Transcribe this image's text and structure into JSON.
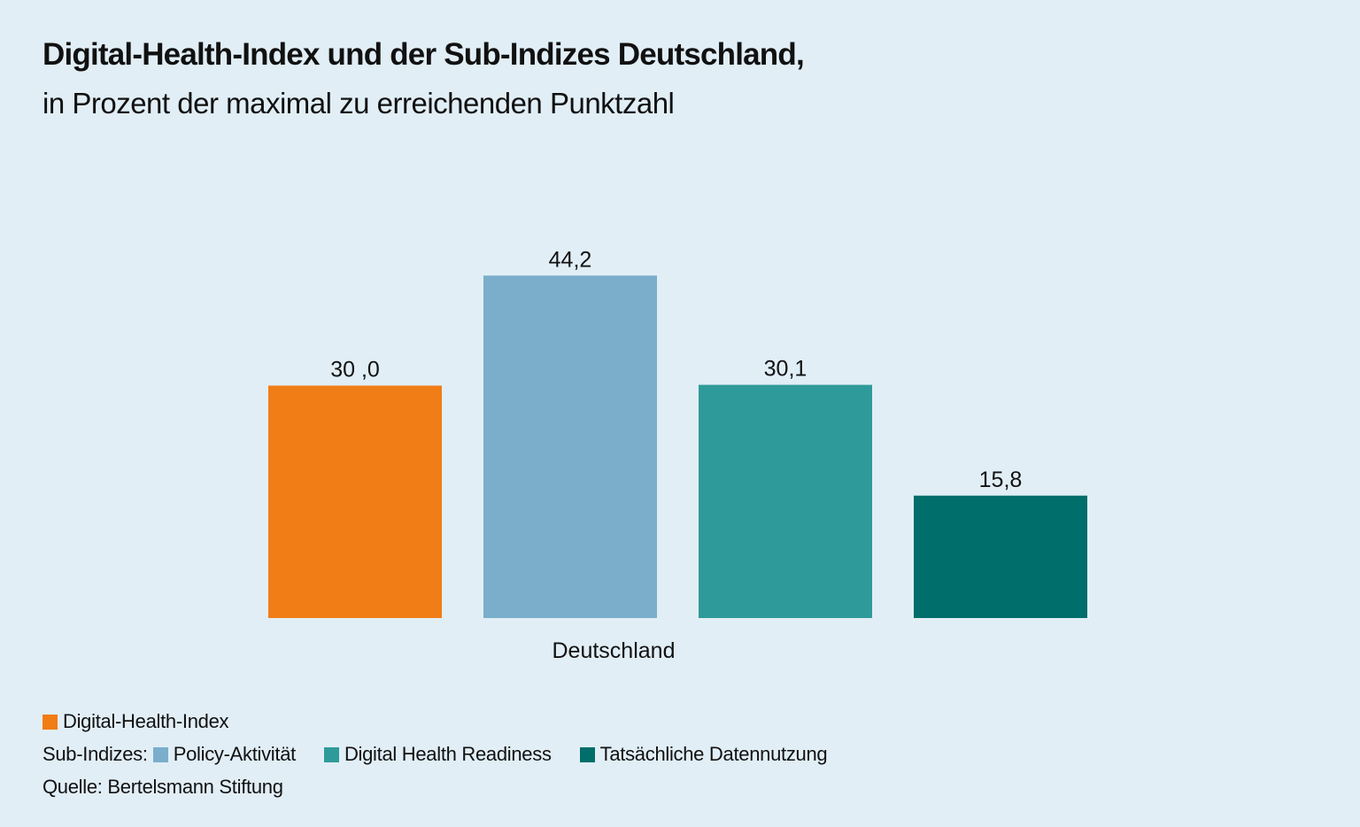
{
  "chart_data": {
    "type": "bar",
    "title": "Digital-Health-Index und der Sub-Indizes Deutschland,",
    "subtitle": "in Prozent der maximal zu erreichenden Punktzahl",
    "categories": [
      "Deutschland"
    ],
    "series": [
      {
        "name": "Digital-Health-Index",
        "values": [
          30.0
        ],
        "label": "30 ,0",
        "color": "#f07d16"
      },
      {
        "name": "Policy-Aktivität",
        "values": [
          44.2
        ],
        "label": "44,2",
        "color": "#7aaecb"
      },
      {
        "name": "Digital Health Readiness",
        "values": [
          30.1
        ],
        "label": "30,1",
        "color": "#2e9b9a"
      },
      {
        "name": "Tatsächliche Datennutzung",
        "values": [
          15.8
        ],
        "label": "15,8",
        "color": "#006e6a"
      }
    ],
    "xlabel": "",
    "ylabel": "",
    "ylim": [
      0,
      50
    ],
    "grid": false,
    "legend": {
      "placement": "bottom-left",
      "main_item": "Digital-Health-Index",
      "sub_prefix": "Sub-Indizes:",
      "sub_items": [
        "Policy-Aktivität",
        "Digital Health Readiness",
        "Tatsächliche Datennutzung"
      ]
    },
    "source": "Quelle: Bertelsmann Stiftung"
  }
}
